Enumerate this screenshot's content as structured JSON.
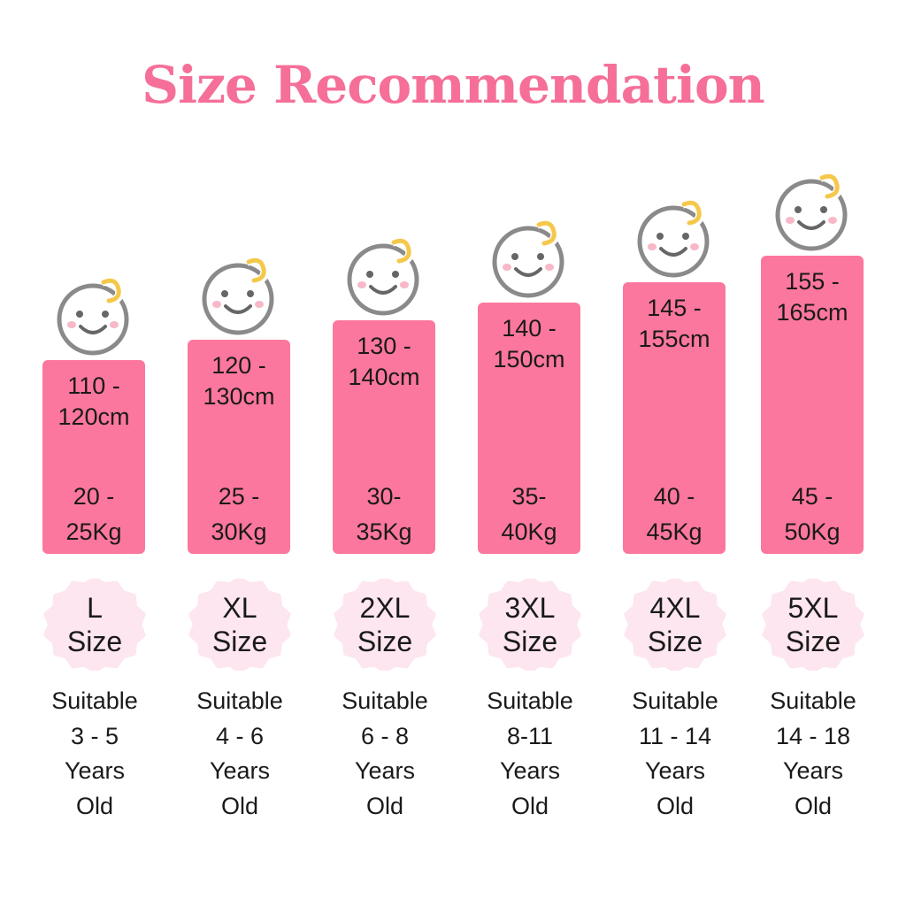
{
  "title": "Size Recommendation",
  "colors": {
    "title": "#f56f98",
    "bar": "#fc779d",
    "badge": "#fde6ef",
    "text": "#1a1a1a"
  },
  "icons": {
    "face": "baby-face-icon",
    "badge": "scalloped-badge-icon"
  },
  "sizes": [
    {
      "height": [
        "110 -",
        "120cm"
      ],
      "weight": [
        "20 -",
        "25Kg"
      ],
      "size": [
        "L",
        "Size"
      ],
      "suitable": [
        "Suitable",
        "3 - 5",
        "Years",
        "Old"
      ]
    },
    {
      "height": [
        "120 -",
        "130cm"
      ],
      "weight": [
        "25 -",
        "30Kg"
      ],
      "size": [
        "XL",
        "Size"
      ],
      "suitable": [
        "Suitable",
        "4 - 6",
        "Years",
        "Old"
      ]
    },
    {
      "height": [
        "130 -",
        "140cm"
      ],
      "weight": [
        "30-",
        "35Kg"
      ],
      "size": [
        "2XL",
        "Size"
      ],
      "suitable": [
        "Suitable",
        "6 - 8",
        "Years",
        "Old"
      ]
    },
    {
      "height": [
        "140 -",
        "150cm"
      ],
      "weight": [
        "35-",
        "40Kg"
      ],
      "size": [
        "3XL",
        "Size"
      ],
      "suitable": [
        "Suitable",
        "8-11",
        "Years",
        "Old"
      ]
    },
    {
      "height": [
        "145 -",
        "155cm"
      ],
      "weight": [
        "40 -",
        "45Kg"
      ],
      "size": [
        "4XL",
        "Size"
      ],
      "suitable": [
        "Suitable",
        "11 - 14",
        "Years",
        "Old"
      ]
    },
    {
      "height": [
        "155 -",
        "165cm"
      ],
      "weight": [
        "45 -",
        "50Kg"
      ],
      "size": [
        "5XL",
        "Size"
      ],
      "suitable": [
        "Suitable",
        "14 - 18",
        "Years",
        "Old"
      ]
    }
  ]
}
